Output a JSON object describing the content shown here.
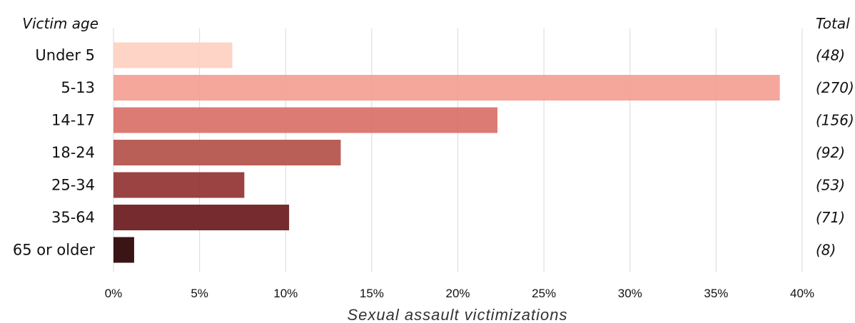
{
  "chart_data": {
    "type": "bar",
    "orientation": "horizontal",
    "category_header": "Victim age",
    "total_header": "Total",
    "categories": [
      "Under 5",
      "5-13",
      "14-17",
      "18-24",
      "25-34",
      "35-64",
      "65 or older"
    ],
    "values": [
      6.9,
      38.7,
      22.3,
      13.2,
      7.6,
      10.2,
      1.2
    ],
    "totals": [
      "(48)",
      "(270)",
      "(156)",
      "(92)",
      "(53)",
      "(71)",
      "(8)"
    ],
    "colors": [
      "#fdd0c0",
      "#f4a092",
      "#d97068",
      "#b4504a",
      "#923232",
      "#6a1a1d",
      "#2a0002"
    ],
    "xlabel": "Sexual assault victimizations",
    "xlim": [
      0,
      40
    ],
    "x_ticks": [
      "0%",
      "5%",
      "10%",
      "15%",
      "20%",
      "25%",
      "30%",
      "35%",
      "40%"
    ],
    "x_tick_values": [
      0,
      5,
      10,
      15,
      20,
      25,
      30,
      35,
      40
    ],
    "grid": "vertical"
  }
}
